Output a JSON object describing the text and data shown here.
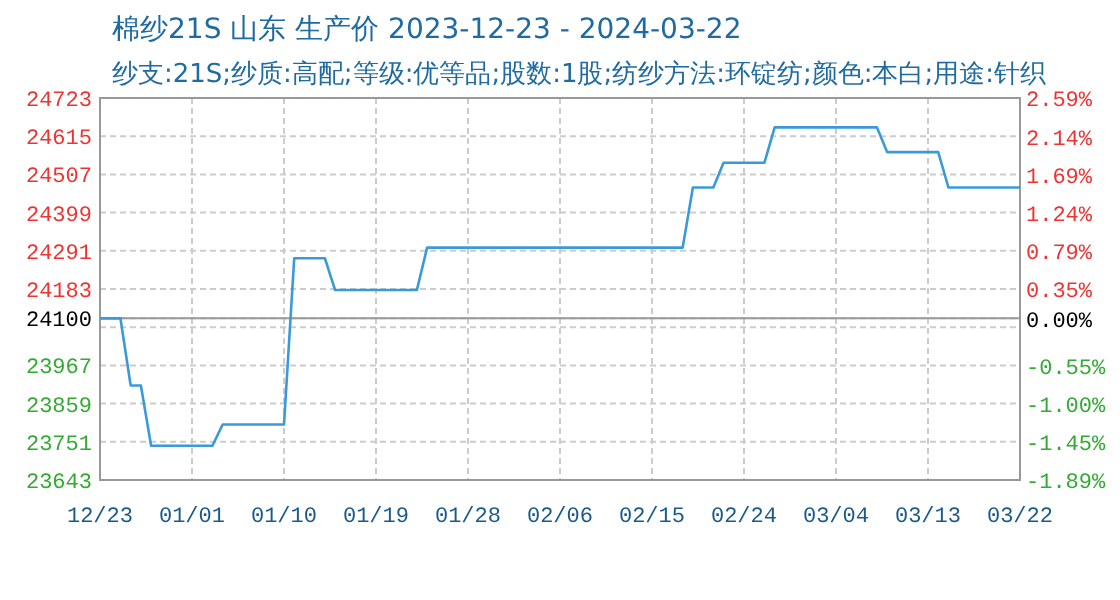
{
  "chart_data": {
    "type": "line",
    "title": "棉纱21S 山东 生产价 2023-12-23 - 2024-03-22",
    "subtitle": "纱支:21S;纱质:高配;等级:优等品;股数:1股;纺纱方法:环锭纺;颜色:本白;用途:针织",
    "x": [
      "2023-12-23",
      "2023-12-25",
      "2023-12-26",
      "2023-12-27",
      "2023-12-28",
      "2024-01-03",
      "2024-01-04",
      "2024-01-10",
      "2024-01-11",
      "2024-01-14",
      "2024-01-15",
      "2024-01-23",
      "2024-01-24",
      "2024-02-18",
      "2024-02-19",
      "2024-02-21",
      "2024-02-22",
      "2024-02-26",
      "2024-02-27",
      "2024-03-08",
      "2024-03-09",
      "2024-03-14",
      "2024-03-15",
      "2024-03-22"
    ],
    "series": [
      {
        "color": "#3a9ad9",
        "values": [
          24100,
          24100,
          23910,
          23910,
          23740,
          23740,
          23800,
          23800,
          24270,
          24270,
          24180,
          24180,
          24300,
          24300,
          24470,
          24470,
          24540,
          24540,
          24640,
          24640,
          24570,
          24570,
          24470,
          24470
        ]
      }
    ],
    "xlim": [
      "2023-12-23",
      "2024-03-22"
    ],
    "xticks": [
      {
        "value": "2023-12-23",
        "label": "12/23"
      },
      {
        "value": "2024-01-01",
        "label": "01/01"
      },
      {
        "value": "2024-01-10",
        "label": "01/10"
      },
      {
        "value": "2024-01-19",
        "label": "01/19"
      },
      {
        "value": "2024-01-28",
        "label": "01/28"
      },
      {
        "value": "2024-02-06",
        "label": "02/06"
      },
      {
        "value": "2024-02-15",
        "label": "02/15"
      },
      {
        "value": "2024-02-24",
        "label": "02/24"
      },
      {
        "value": "2024-03-04",
        "label": "03/04"
      },
      {
        "value": "2024-03-13",
        "label": "03/13"
      },
      {
        "value": "2024-03-22",
        "label": "03/22"
      }
    ],
    "ylim": [
      23643,
      24723
    ],
    "yticks": [
      24723,
      24615,
      24507,
      24399,
      24291,
      24183,
      24100,
      {
        "value": 24075,
        "label": null
      },
      23967,
      23859,
      23751,
      23643
    ],
    "y2lim": [
      -1.89,
      2.59
    ],
    "y2ticks": [
      {
        "value": 2.59,
        "label": "2.59%"
      },
      {
        "value": 2.137,
        "label": "2.14%"
      },
      {
        "value": 1.689,
        "label": "1.69%"
      },
      {
        "value": 1.241,
        "label": "1.24%"
      },
      {
        "value": 0.793,
        "label": "0.79%"
      },
      {
        "value": 0.35,
        "label": "0.35%"
      },
      {
        "value": 0,
        "label": "0.00%"
      },
      {
        "value": -0.552,
        "label": "-0.55%"
      },
      {
        "value": -1.0,
        "label": "-1.00%"
      },
      {
        "value": -1.448,
        "label": "-1.45%"
      },
      {
        "value": -1.89,
        "label": "-1.89%"
      }
    ],
    "ref_lines": [
      {
        "axis": "y",
        "value": 24100,
        "label": null,
        "color": "#999999"
      }
    ],
    "grid": true,
    "marker": "none",
    "line_style": "solid"
  }
}
